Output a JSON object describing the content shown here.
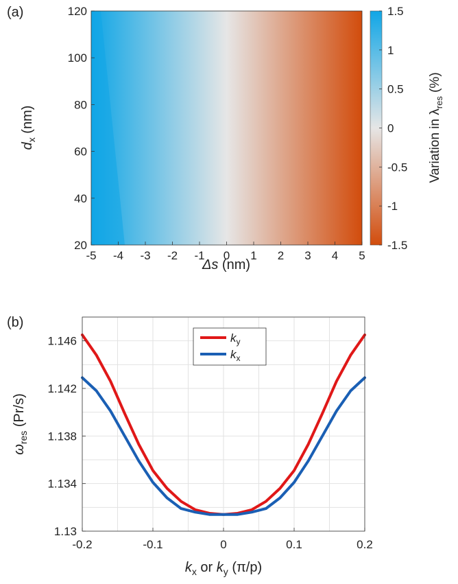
{
  "chart_data": [
    {
      "panel_label": "(a)",
      "type": "heatmap",
      "xlabel": {
        "main": "Δs",
        "unit": " (nm)"
      },
      "ylabel": {
        "main": "d",
        "sub": "x",
        "unit": " (nm)"
      },
      "xlim": [
        -5,
        5
      ],
      "ylim": [
        20,
        120
      ],
      "x_ticks": [
        "-5",
        "-4",
        "-3",
        "-2",
        "-1",
        "0",
        "1",
        "2",
        "3",
        "4",
        "5"
      ],
      "y_ticks": [
        "20",
        "40",
        "60",
        "80",
        "100",
        "120"
      ],
      "colorbar": {
        "label": {
          "main": "Variation in λ",
          "sub": "res",
          "unit": " (%)"
        },
        "range": [
          -1.5,
          1.5
        ],
        "ticks": [
          "-1.5",
          "-1",
          "-0.5",
          "0",
          "0.5",
          "1",
          "1.5"
        ],
        "colors": {
          "high": "#10a6e6",
          "mid": "#e6e6e6",
          "low": "#d24c0c"
        }
      },
      "value_model": "variation ≈ -0.3 × Δs (%), nearly independent of d_x"
    },
    {
      "panel_label": "(b)",
      "type": "line",
      "xlabel": {
        "k1": "k",
        "k1sub": "x",
        "or": " or ",
        "k2": "k",
        "k2sub": "y",
        "unit": " (π/p)"
      },
      "ylabel": {
        "main": "ω",
        "sub": "res",
        "unit": " (Pr/s)"
      },
      "xlim": [
        -0.2,
        0.2
      ],
      "ylim": [
        1.13,
        1.148
      ],
      "x_ticks": [
        "-0.2",
        "-0.1",
        "0",
        "0.1",
        "0.2"
      ],
      "y_ticks": [
        "1.13",
        "1.134",
        "1.138",
        "1.142",
        "1.146"
      ],
      "grid": true,
      "legend_position": "top-center",
      "series": [
        {
          "name": "k",
          "sub": "y",
          "color": "#e01818",
          "x": [
            -0.2,
            -0.18,
            -0.16,
            -0.14,
            -0.12,
            -0.1,
            -0.08,
            -0.06,
            -0.04,
            -0.02,
            0,
            0.02,
            0.04,
            0.06,
            0.08,
            0.1,
            0.12,
            0.14,
            0.16,
            0.18,
            0.2
          ],
          "y": [
            1.1465,
            1.1448,
            1.1426,
            1.1399,
            1.1373,
            1.1351,
            1.1336,
            1.1325,
            1.1318,
            1.1315,
            1.1314,
            1.1315,
            1.1318,
            1.1325,
            1.1336,
            1.1351,
            1.1373,
            1.1399,
            1.1426,
            1.1448,
            1.1465
          ]
        },
        {
          "name": "k",
          "sub": "x",
          "color": "#1a5fb4",
          "x": [
            -0.2,
            -0.18,
            -0.16,
            -0.14,
            -0.12,
            -0.1,
            -0.08,
            -0.06,
            -0.04,
            -0.02,
            0,
            0.02,
            0.04,
            0.06,
            0.08,
            0.1,
            0.12,
            0.14,
            0.16,
            0.18,
            0.2
          ],
          "y": [
            1.1429,
            1.1418,
            1.1401,
            1.138,
            1.1359,
            1.1341,
            1.1328,
            1.1319,
            1.1316,
            1.1314,
            1.1314,
            1.1314,
            1.1316,
            1.1319,
            1.1328,
            1.1341,
            1.1359,
            1.138,
            1.1401,
            1.1418,
            1.1429
          ]
        }
      ]
    }
  ]
}
